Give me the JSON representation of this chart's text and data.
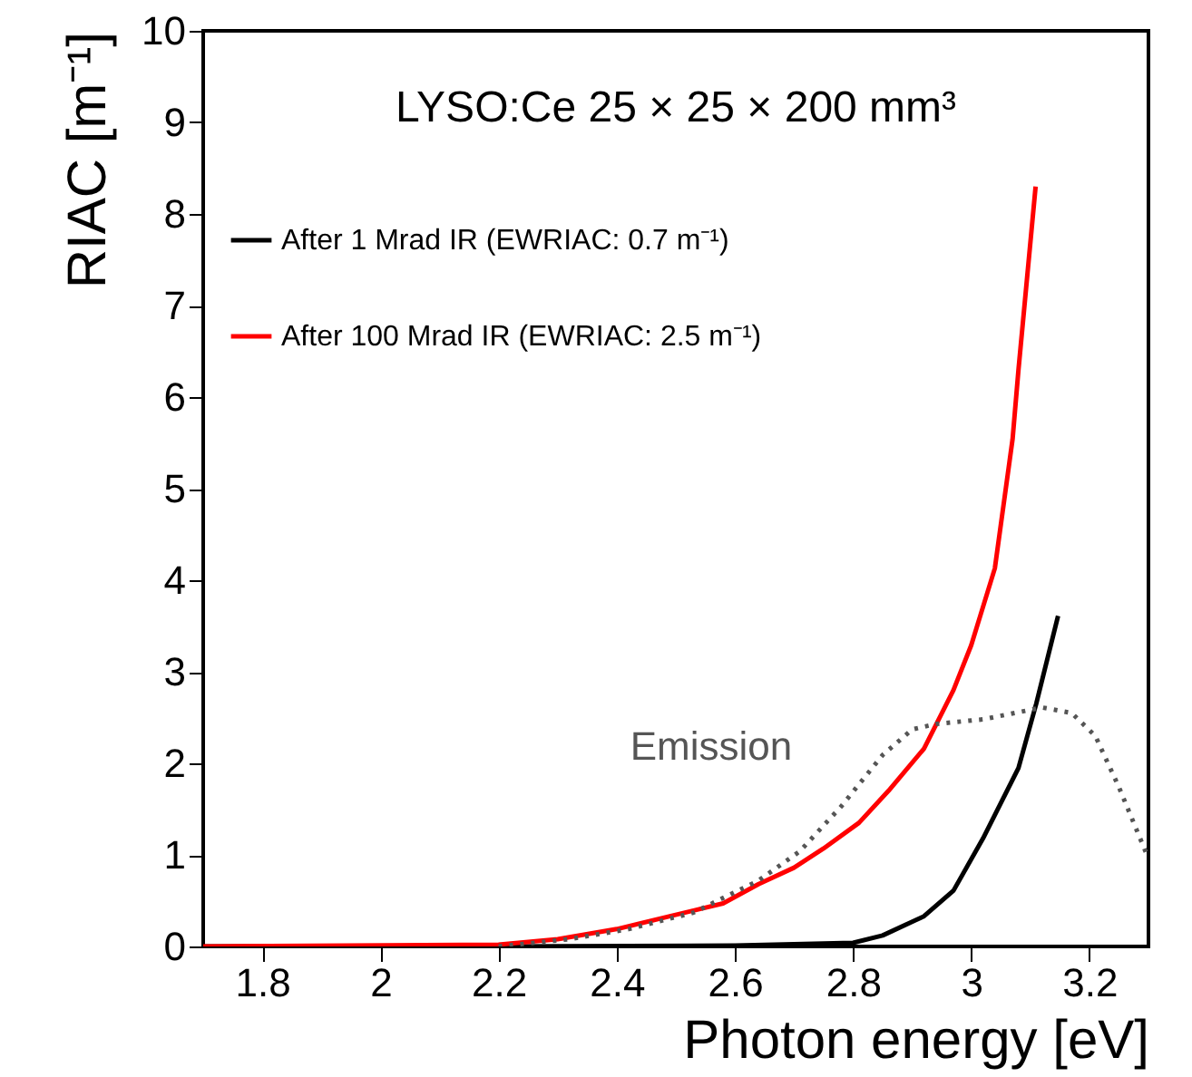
{
  "chart_data": {
    "type": "line",
    "title": "LYSO:Ce 25 × 25 × 200 mm³",
    "xlabel": "Photon energy [eV]",
    "ylabel": "RIAC [m⁻¹]",
    "xlim": [
      1.7,
      3.3
    ],
    "xticks": [
      1.8,
      2,
      2.2,
      2.4,
      2.6,
      2.8,
      3,
      3.2
    ],
    "ylim": [
      0,
      10
    ],
    "yticks": [
      0,
      1,
      2,
      3,
      4,
      5,
      6,
      7,
      8,
      9,
      10
    ],
    "legend": "top left",
    "grid": false,
    "annotations": [
      "Emission"
    ],
    "series": [
      {
        "name": "After 1 Mrad IR (EWRIAC: 0.7 m⁻¹)",
        "color": "#000000",
        "x": [
          1.7,
          2.2,
          2.6,
          2.8,
          2.85,
          2.92,
          2.97,
          3.02,
          3.08,
          3.11,
          3.147
        ],
        "values": [
          0,
          0,
          0.01,
          0.04,
          0.12,
          0.33,
          0.61,
          1.18,
          1.95,
          2.65,
          3.61
        ]
      },
      {
        "name": "After 100 Mrad IR (EWRIAC: 2.5 m⁻¹)",
        "color": "#ff0000",
        "x": [
          1.7,
          2.2,
          2.3,
          2.4,
          2.49,
          2.58,
          2.64,
          2.7,
          2.75,
          2.81,
          2.86,
          2.92,
          2.97,
          3.0,
          3.04,
          3.07,
          3.08,
          3.109
        ],
        "values": [
          0,
          0.02,
          0.08,
          0.19,
          0.33,
          0.47,
          0.68,
          0.86,
          1.07,
          1.35,
          1.7,
          2.16,
          2.8,
          3.29,
          4.13,
          5.54,
          6.3,
          8.3
        ]
      },
      {
        "color": "#555555",
        "line_style": "dotted",
        "x": [
          2.2,
          2.32,
          2.42,
          2.53,
          2.64,
          2.71,
          2.78,
          2.85,
          2.9,
          2.94,
          3.02,
          3.12,
          3.17,
          3.21,
          3.25,
          3.3
        ],
        "values": [
          0,
          0.08,
          0.19,
          0.37,
          0.72,
          1.04,
          1.53,
          2.09,
          2.37,
          2.43,
          2.48,
          2.61,
          2.55,
          2.3,
          1.74,
          0.96
        ]
      }
    ]
  }
}
